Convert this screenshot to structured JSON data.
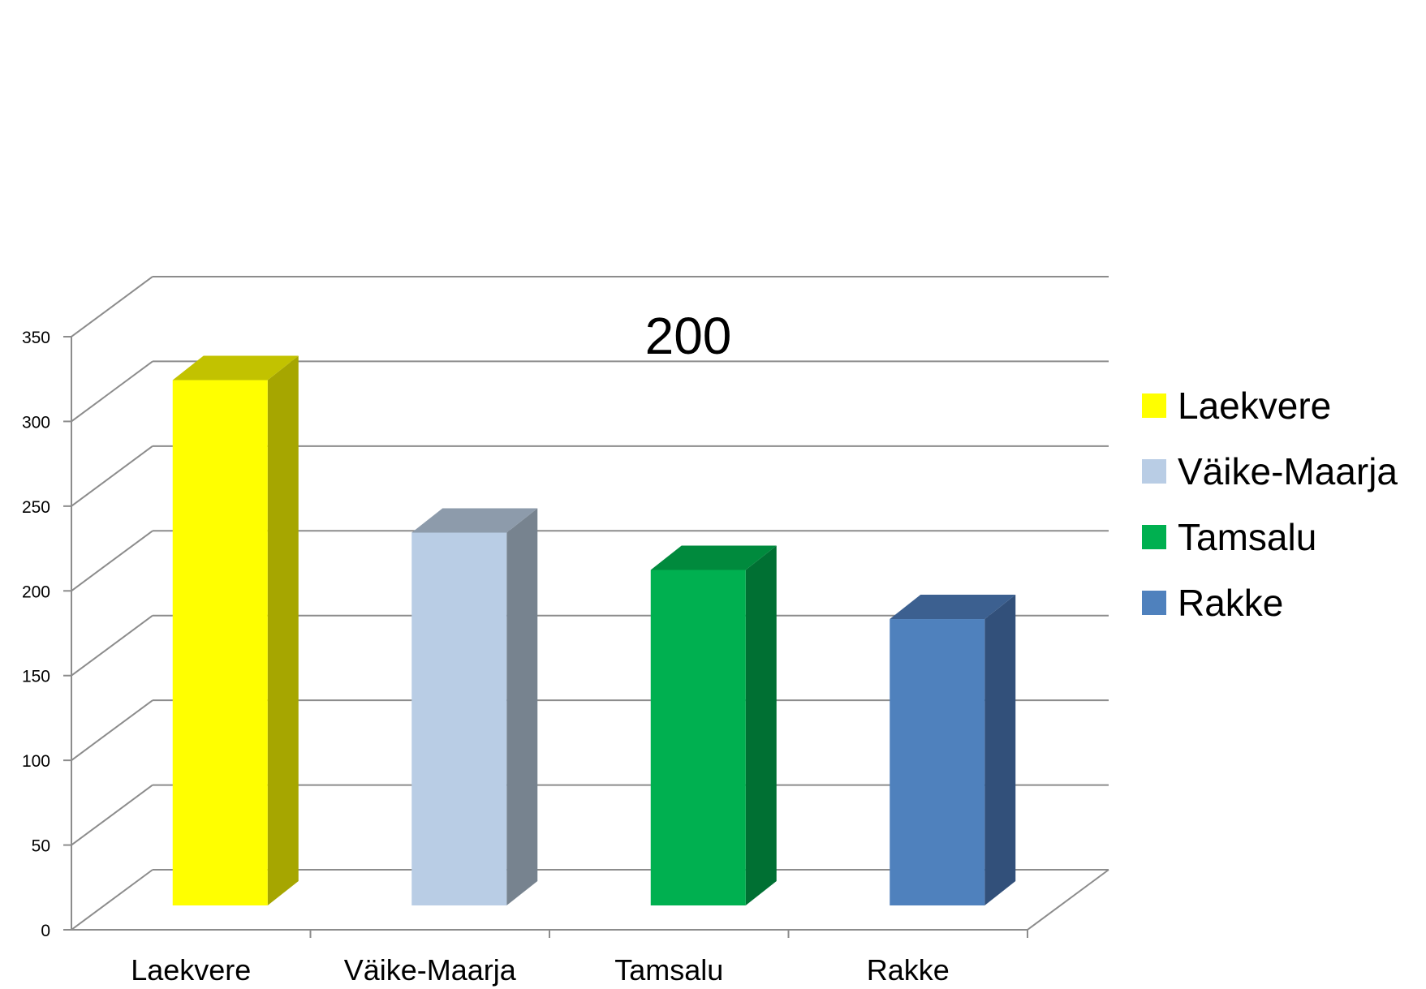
{
  "chart_data": {
    "type": "bar",
    "style": "3d-column",
    "categories": [
      "Laekvere",
      "Väike-Maarja",
      "Tamsalu",
      "Rakke"
    ],
    "values": [
      310,
      220,
      198,
      169
    ],
    "ylim": [
      0,
      350
    ],
    "yticks": [
      "0",
      "50",
      "100",
      "150",
      "200",
      "250",
      "300",
      "350"
    ],
    "grid": true,
    "legend": {
      "placement": "right",
      "entries": [
        "Laekvere",
        "Väike-Maarja",
        "Tamsalu",
        "Rakke"
      ]
    },
    "annotation": "200",
    "colors": [
      {
        "front": "#FFFF00",
        "side": "#A6A600",
        "top": "#C2C200"
      },
      {
        "front": "#B9CDE5",
        "side": "#77838F",
        "top": "#8D9BAB"
      },
      {
        "front": "#00B050",
        "side": "#007033",
        "top": "#008A3D"
      },
      {
        "front": "#4F81BD",
        "side": "#32507A",
        "top": "#3C6090"
      }
    ]
  }
}
